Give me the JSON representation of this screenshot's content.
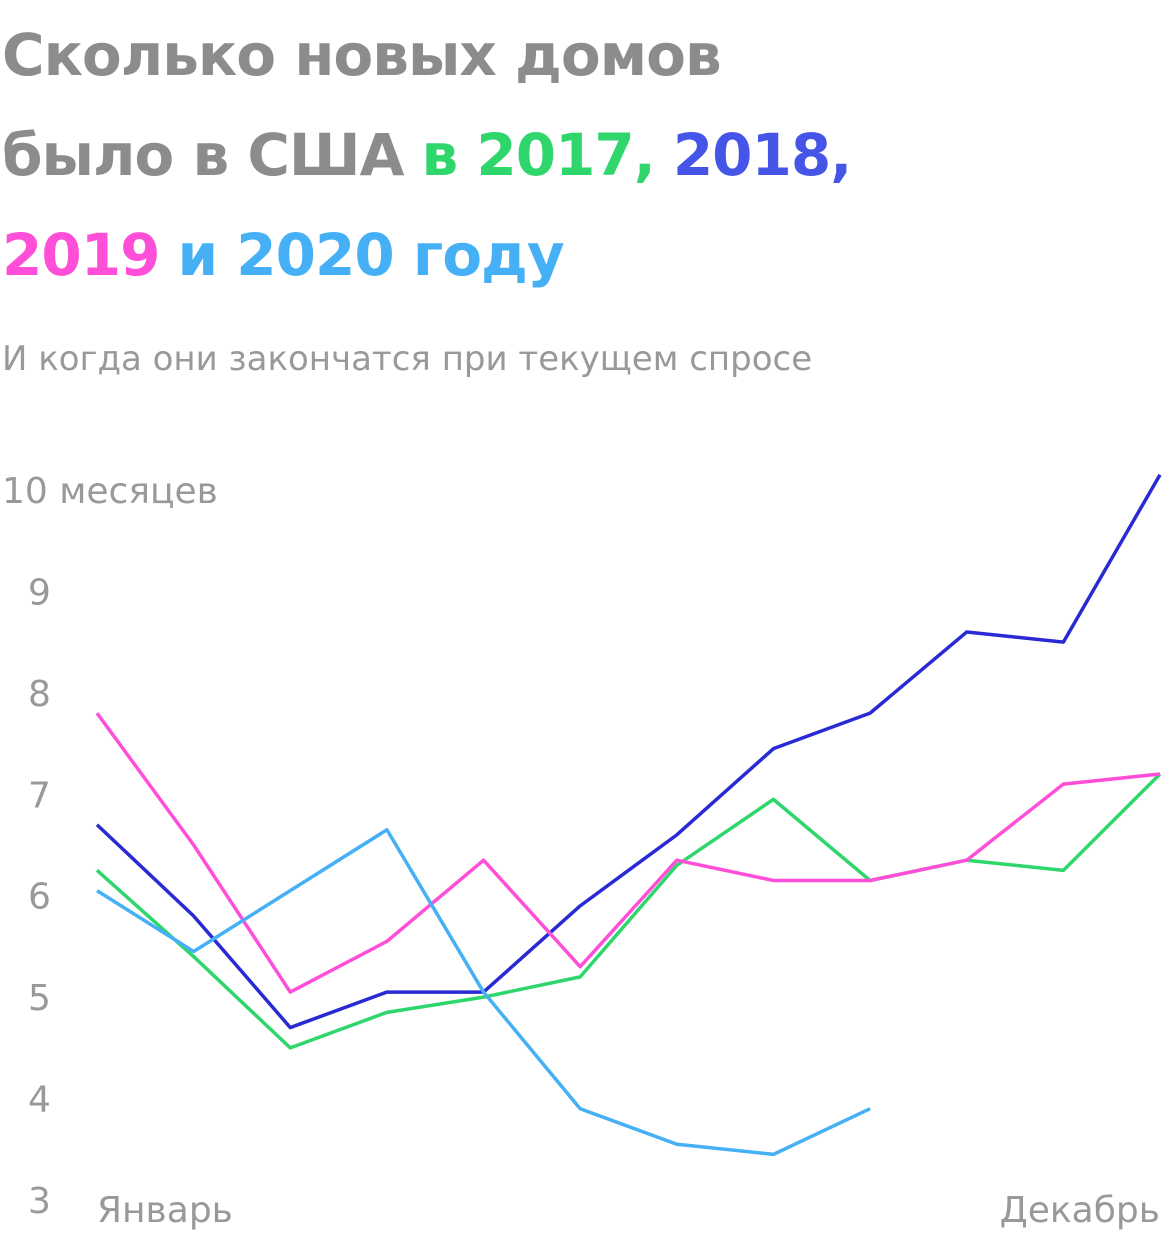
{
  "chart_data": {
    "type": "line",
    "title": [
      [
        {
          "text": "Сколько новых домов",
          "color": "#8c8c8c"
        }
      ],
      [
        {
          "text": "было в США",
          "color": "#8c8c8c"
        },
        {
          "text": "в 2017,",
          "color": "#2ed66b"
        },
        {
          "text": "2018,",
          "color": "#4455e8"
        }
      ],
      [
        {
          "text": "2019",
          "color": "#ff4fd8"
        },
        {
          "text": "и 2020 году",
          "color": "#45b0f5"
        }
      ]
    ],
    "subtitle": "И когда они закончатся при текущем спросе",
    "categories": [
      "Январь",
      null,
      null,
      null,
      null,
      null,
      null,
      null,
      null,
      null,
      null,
      "Декабрь"
    ],
    "series": [
      {
        "color": "#2ed66b",
        "values": [
          6.25,
          5.4,
          4.5,
          4.85,
          5.0,
          5.2,
          6.3,
          6.95,
          6.15,
          6.35,
          6.25,
          7.2
        ]
      },
      {
        "color": "#2a2ad4",
        "values": [
          6.7,
          5.8,
          4.7,
          5.05,
          5.05,
          5.9,
          6.6,
          7.45,
          7.8,
          8.6,
          8.5,
          10.15
        ]
      },
      {
        "color": "#ff4fd8",
        "values": [
          7.8,
          6.5,
          5.05,
          5.55,
          6.35,
          5.3,
          6.35,
          6.15,
          6.15,
          6.35,
          7.1,
          7.2
        ]
      },
      {
        "color": "#45b0f5",
        "values": [
          6.05,
          5.45,
          6.05,
          6.65,
          5.05,
          3.9,
          3.55,
          3.45,
          3.9,
          null,
          null,
          null
        ]
      }
    ],
    "ylim": [
      3,
      10
    ],
    "yticks": [
      3,
      4,
      5,
      6,
      7,
      8,
      9,
      {
        "value": 10,
        "label": "10 месяцев"
      }
    ],
    "grid": false
  }
}
